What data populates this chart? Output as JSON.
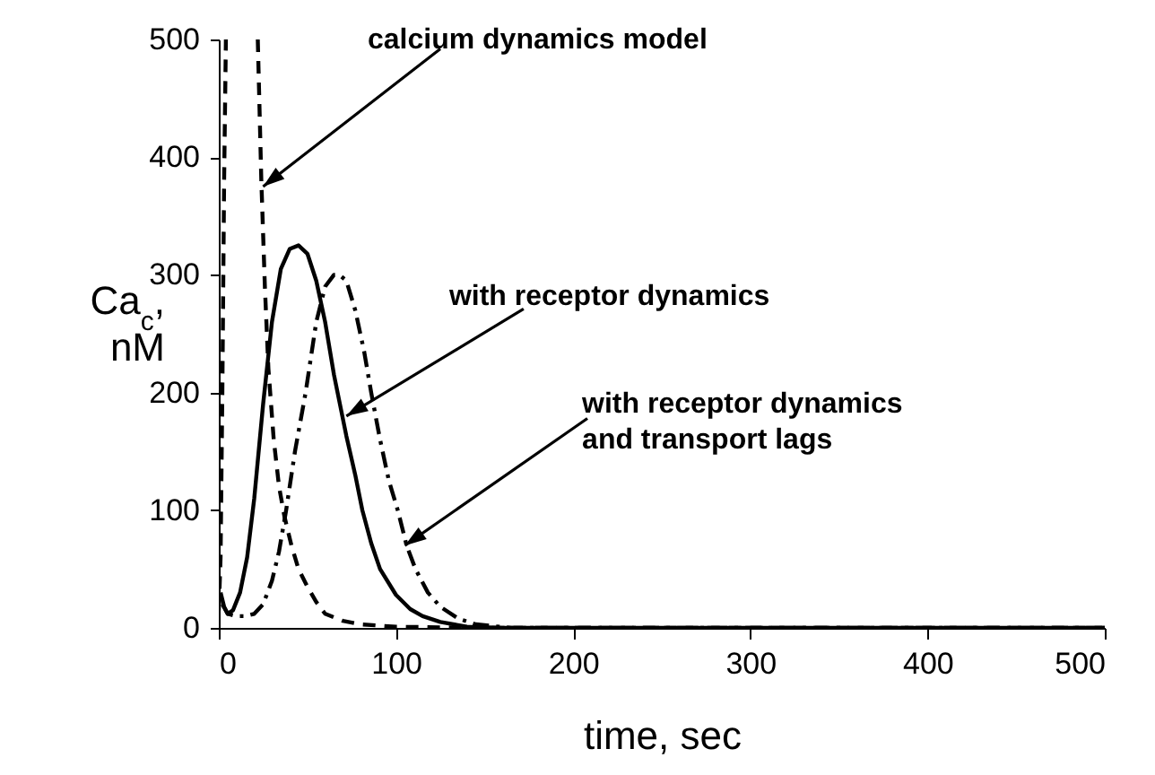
{
  "chart_data": {
    "type": "line",
    "xlabel": "time, sec",
    "ylabel": "Ca$_{c}$,\nnM",
    "xlim": [
      0,
      500
    ],
    "xticks": [
      0,
      100,
      200,
      300,
      400,
      500
    ],
    "ylim": [
      0,
      500
    ],
    "yticks": [
      0,
      100,
      200,
      300,
      400,
      500
    ],
    "series": [
      {
        "color": "#000000",
        "line_style": "dashed",
        "x": [
          0,
          1,
          2,
          3,
          4,
          13,
          22,
          24,
          26,
          28,
          31,
          34,
          37,
          41,
          45,
          50,
          55,
          60,
          70,
          80,
          100,
          150,
          200,
          500
        ],
        "values": [
          15,
          60,
          200,
          380,
          500,
          null,
          500,
          380,
          290,
          220,
          160,
          120,
          95,
          70,
          50,
          35,
          22,
          12,
          6,
          3,
          1,
          0,
          0,
          0
        ]
      },
      {
        "color": "#000000",
        "line_style": "solid",
        "x": [
          1,
          3,
          5,
          8,
          12,
          16,
          20,
          25,
          30,
          35,
          40,
          45,
          50,
          55,
          60,
          65,
          72,
          77,
          81,
          86,
          91,
          100,
          108,
          115,
          125,
          140,
          160,
          200,
          500
        ],
        "values": [
          30,
          18,
          12,
          15,
          30,
          60,
          110,
          190,
          260,
          305,
          322,
          325,
          318,
          295,
          260,
          215,
          163,
          130,
          100,
          72,
          50,
          28,
          16,
          10,
          5,
          1,
          0,
          0,
          0
        ]
      },
      {
        "color": "#000000",
        "line_style": "dashdot",
        "x": [
          2,
          5,
          10,
          15,
          20,
          25,
          30,
          34,
          38,
          43,
          49,
          55,
          60,
          65,
          68,
          72,
          77,
          82,
          86,
          91,
          96,
          101,
          106,
          111,
          118,
          125,
          135,
          145,
          165,
          200,
          500
        ],
        "values": [
          20,
          12,
          10,
          10,
          12,
          20,
          40,
          65,
          100,
          150,
          200,
          260,
          290,
          300,
          300,
          295,
          270,
          235,
          200,
          160,
          125,
          100,
          70,
          50,
          30,
          18,
          8,
          3,
          0,
          0,
          0
        ]
      }
    ],
    "annotations": [
      {
        "text": "calcium dynamics model",
        "x": 25,
        "y": 375
      },
      {
        "text": "with receptor dynamics",
        "x": 72,
        "y": 180
      },
      {
        "text": "with receptor dynamics\nand transport lags",
        "x": 105,
        "y": 70
      }
    ]
  }
}
